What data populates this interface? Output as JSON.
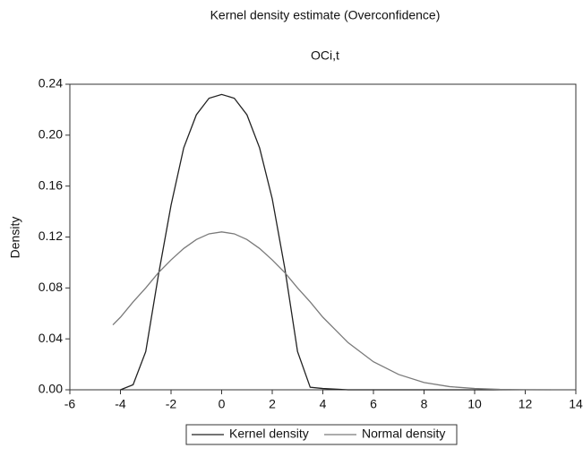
{
  "chart_data": {
    "type": "line",
    "title": "Kernel density estimate (Overconfidence)",
    "subtitle": "OCi,t",
    "y_label": "Density",
    "x": [
      -4.3,
      -4,
      -3.5,
      -3,
      -2.5,
      -2,
      -1.5,
      -1,
      -0.5,
      0,
      0.5,
      1,
      1.5,
      2,
      2.5,
      3,
      3.5,
      4,
      5,
      6,
      7,
      8,
      9,
      10,
      11,
      12,
      13
    ],
    "series": [
      {
        "name": "Kernel density",
        "color": "#222222",
        "values": [
          null,
          0.0,
          0.004,
          0.03,
          0.09,
          0.145,
          0.19,
          0.216,
          0.229,
          0.232,
          0.229,
          0.216,
          0.19,
          0.15,
          0.095,
          0.03,
          0.002,
          0.001,
          0,
          0,
          0,
          0,
          0,
          0,
          0,
          0,
          0
        ]
      },
      {
        "name": "Normal density",
        "color": "#7a7a7a",
        "values": [
          0.051,
          0.057,
          0.069,
          0.08,
          0.092,
          0.102,
          0.111,
          0.118,
          0.1225,
          0.124,
          0.1225,
          0.118,
          0.111,
          0.102,
          0.092,
          0.08,
          0.069,
          0.057,
          0.037,
          0.022,
          0.012,
          0.0057,
          0.0025,
          0.001,
          0.0003,
          0.0001,
          0
        ]
      }
    ],
    "xlim": [
      -6,
      14
    ],
    "xticks": [
      -6,
      -4,
      -2,
      0,
      2,
      4,
      6,
      8,
      10,
      12,
      14
    ],
    "ylim": [
      0,
      0.24
    ],
    "yticks": [
      {
        "value": 0,
        "label": "0.00"
      },
      {
        "value": 0.04,
        "label": "0.04"
      },
      {
        "value": 0.08,
        "label": "0.08"
      },
      {
        "value": 0.12,
        "label": "0.12"
      },
      {
        "value": 0.16,
        "label": "0.16"
      },
      {
        "value": 0.2,
        "label": "0.20"
      },
      {
        "value": 0.24,
        "label": "0.24"
      }
    ],
    "grid": false,
    "legend": "bottom"
  }
}
